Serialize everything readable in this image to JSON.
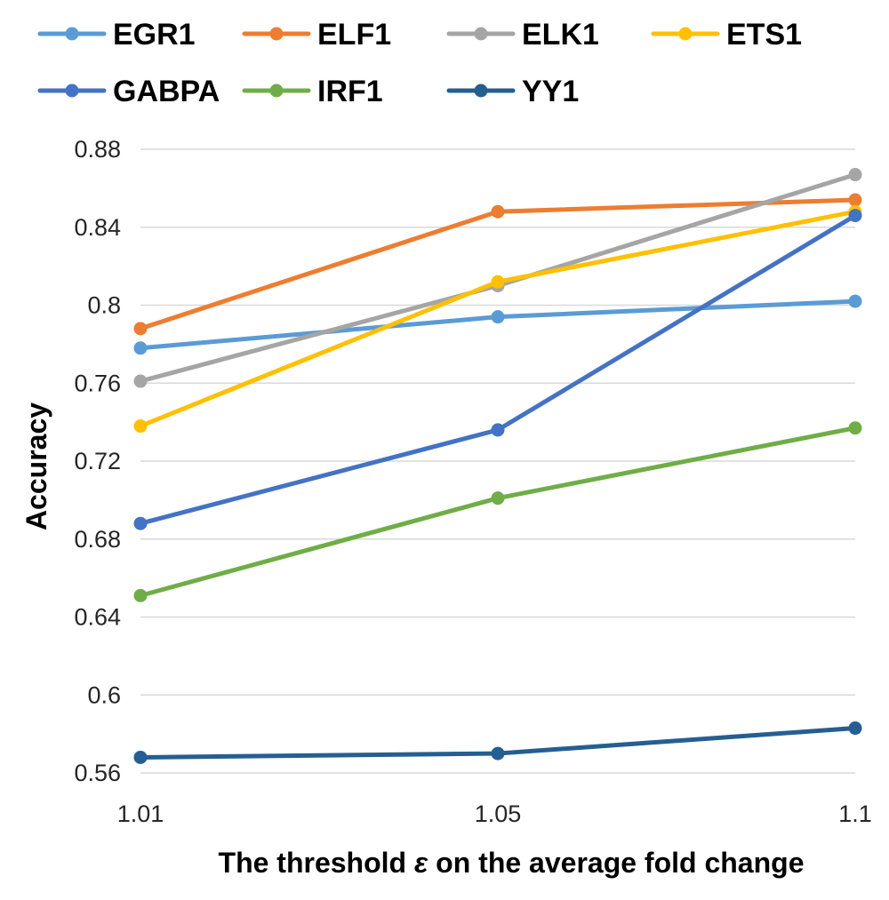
{
  "chart_data": {
    "type": "line",
    "title": "",
    "xlabel_parts": [
      "The threshold ",
      "ε",
      " on the average fold change"
    ],
    "ylabel": "Accuracy",
    "x": [
      "1.01",
      "1.05",
      "1.1"
    ],
    "yticks": [
      "0.56",
      "0.6",
      "0.64",
      "0.68",
      "0.72",
      "0.76",
      "0.8",
      "0.84",
      "0.88"
    ],
    "ylim": [
      0.56,
      0.88
    ],
    "grid": true,
    "legend_position": "top",
    "series": [
      {
        "name": "EGR1",
        "color": "#5b9bd5",
        "values": [
          0.778,
          0.794,
          0.802
        ]
      },
      {
        "name": "ELF1",
        "color": "#ed7d31",
        "values": [
          0.788,
          0.848,
          0.854
        ]
      },
      {
        "name": "ELK1",
        "color": "#a5a5a5",
        "values": [
          0.761,
          0.81,
          0.867
        ]
      },
      {
        "name": "ETS1",
        "color": "#ffc000",
        "values": [
          0.738,
          0.812,
          0.848
        ]
      },
      {
        "name": "GABPA",
        "color": "#4472c4",
        "values": [
          0.688,
          0.736,
          0.846
        ]
      },
      {
        "name": "IRF1",
        "color": "#70ad47",
        "values": [
          0.651,
          0.701,
          0.737
        ]
      },
      {
        "name": "YY1",
        "color": "#255e91",
        "values": [
          0.568,
          0.57,
          0.583
        ]
      }
    ]
  }
}
